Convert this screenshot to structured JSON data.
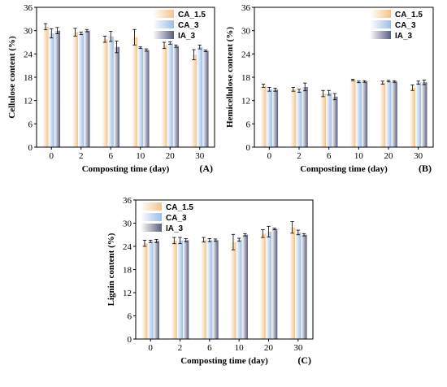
{
  "colors": {
    "CA_1.5": "#f2c48d",
    "CA_3": "#9dbde6",
    "IA_3": "#5b5f80"
  },
  "chart_data": [
    {
      "type": "bar",
      "panel_label": "(A)",
      "xlabel": "Composting time (day)",
      "ylabel": "Cellulose content (%)",
      "ylim": [
        0,
        36
      ],
      "yticks": [
        0,
        6,
        12,
        18,
        24,
        30,
        36
      ],
      "categories": [
        "0",
        "2",
        "6",
        "10",
        "20",
        "30"
      ],
      "legend_position": "top-right",
      "series": [
        {
          "name": "CA_1.5",
          "values": [
            31.0,
            29.6,
            27.8,
            28.3,
            26.2,
            23.8
          ],
          "errors": [
            0.8,
            1.0,
            0.8,
            2.0,
            0.8,
            1.3
          ]
        },
        {
          "name": "CA_3",
          "values": [
            29.3,
            29.3,
            28.5,
            25.6,
            26.8,
            25.8
          ],
          "errors": [
            1.2,
            0.3,
            1.3,
            0.2,
            0.3,
            0.5
          ]
        },
        {
          "name": "IA_3",
          "values": [
            30.0,
            30.0,
            25.8,
            25.0,
            26.0,
            24.8
          ],
          "errors": [
            0.8,
            0.3,
            1.5,
            0.3,
            0.3,
            0.2
          ]
        }
      ]
    },
    {
      "type": "bar",
      "panel_label": "(B)",
      "xlabel": "Composting time (day)",
      "ylabel": "Hemicellulose content (%)",
      "ylim": [
        0,
        36
      ],
      "yticks": [
        0,
        6,
        12,
        18,
        24,
        30,
        36
      ],
      "categories": [
        "0",
        "2",
        "6",
        "10",
        "20",
        "30"
      ],
      "legend_position": "top-right",
      "series": [
        {
          "name": "CA_1.5",
          "values": [
            15.8,
            14.9,
            13.8,
            17.3,
            16.6,
            15.3
          ],
          "errors": [
            0.4,
            0.5,
            0.8,
            0.2,
            0.4,
            0.7
          ]
        },
        {
          "name": "CA_3",
          "values": [
            14.9,
            14.5,
            14.0,
            16.8,
            17.0,
            16.6
          ],
          "errors": [
            0.5,
            0.4,
            0.6,
            0.2,
            0.2,
            0.4
          ]
        },
        {
          "name": "IA_3",
          "values": [
            14.8,
            15.5,
            13.0,
            16.9,
            16.9,
            16.7
          ],
          "errors": [
            0.4,
            1.0,
            0.8,
            0.2,
            0.2,
            0.6
          ]
        }
      ]
    },
    {
      "type": "bar",
      "panel_label": "(C)",
      "xlabel": "Composting time (day)",
      "ylabel": "Lignin content (%)",
      "ylim": [
        0,
        36
      ],
      "yticks": [
        0,
        6,
        12,
        18,
        24,
        30,
        36
      ],
      "categories": [
        "0",
        "2",
        "6",
        "10",
        "20",
        "30"
      ],
      "legend_position": "top-left",
      "series": [
        {
          "name": "CA_1.5",
          "values": [
            24.8,
            25.5,
            25.7,
            25.1,
            27.3,
            28.9
          ],
          "errors": [
            0.8,
            0.8,
            0.6,
            2.0,
            1.0,
            1.5
          ]
        },
        {
          "name": "CA_3",
          "values": [
            25.3,
            25.5,
            25.6,
            25.7,
            27.8,
            27.6
          ],
          "errors": [
            0.3,
            0.8,
            0.4,
            0.4,
            1.4,
            0.6
          ]
        },
        {
          "name": "IA_3",
          "values": [
            25.4,
            25.6,
            25.6,
            27.0,
            28.5,
            27.0
          ],
          "errors": [
            0.4,
            0.4,
            0.3,
            0.3,
            0.2,
            0.3
          ]
        }
      ]
    }
  ]
}
